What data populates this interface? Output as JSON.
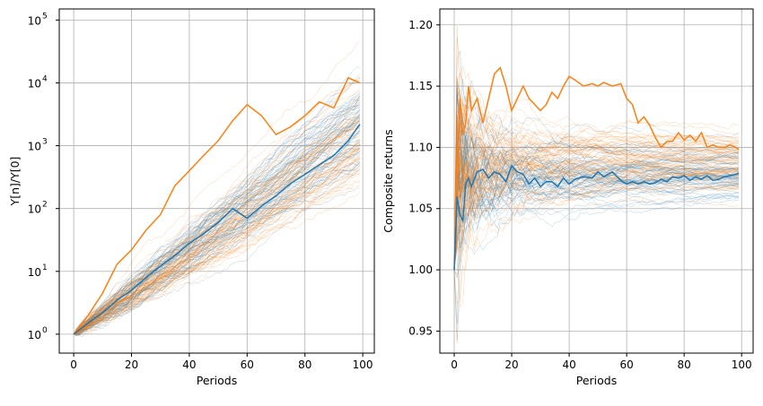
{
  "colors": {
    "blue": "#1f77b4",
    "orange": "#ff7f0e",
    "grid": "#b0b0b0"
  },
  "chart_data": [
    {
      "type": "line",
      "xlabel": "Periods",
      "ylabel": "Y[n]/Y[0]",
      "yscale": "log",
      "xlim": [
        -5,
        104
      ],
      "ylim": [
        0.5,
        150000
      ],
      "grid": true,
      "xticks": [
        "0",
        "20",
        "40",
        "60",
        "80",
        "100"
      ],
      "yticks": [
        {
          "base": "10",
          "exp": "0"
        },
        {
          "base": "10",
          "exp": "1"
        },
        {
          "base": "10",
          "exp": "2"
        },
        {
          "base": "10",
          "exp": "3"
        },
        {
          "base": "10",
          "exp": "4"
        },
        {
          "base": "10",
          "exp": "5"
        }
      ],
      "highlight_series": [
        {
          "color": "orange",
          "x": [
            0,
            5,
            10,
            15,
            20,
            25,
            30,
            35,
            40,
            45,
            50,
            55,
            60,
            65,
            70,
            75,
            80,
            85,
            90,
            95,
            99
          ],
          "values": [
            1,
            2,
            4.5,
            13,
            22,
            45,
            80,
            230,
            400,
            700,
            1200,
            2500,
            4500,
            3000,
            1500,
            2000,
            3000,
            5000,
            4000,
            12000,
            10000
          ]
        },
        {
          "color": "blue",
          "x": [
            0,
            5,
            10,
            15,
            20,
            25,
            30,
            35,
            40,
            45,
            50,
            55,
            60,
            65,
            70,
            75,
            80,
            85,
            90,
            95,
            99
          ],
          "values": [
            1,
            1.5,
            2.2,
            3.5,
            5,
            8,
            12,
            18,
            28,
            40,
            60,
            100,
            70,
            110,
            160,
            250,
            350,
            500,
            700,
            1200,
            2200
          ]
        }
      ]
    },
    {
      "type": "line",
      "xlabel": "Periods",
      "ylabel": "Composite returns",
      "yscale": "linear",
      "xlim": [
        -5,
        104
      ],
      "ylim": [
        0.932,
        1.213
      ],
      "grid": true,
      "xticks": [
        "0",
        "20",
        "40",
        "60",
        "80",
        "100"
      ],
      "yticks": [
        "0.95",
        "1.00",
        "1.05",
        "1.10",
        "1.15",
        "1.20"
      ],
      "highlight_series": [
        {
          "color": "orange",
          "x": [
            0,
            1,
            2,
            3,
            4,
            5,
            6,
            8,
            10,
            12,
            14,
            16,
            18,
            20,
            22,
            24,
            26,
            28,
            30,
            32,
            34,
            36,
            38,
            40,
            42,
            45,
            48,
            50,
            52,
            55,
            58,
            60,
            62,
            64,
            66,
            68,
            70,
            72,
            74,
            76,
            78,
            80,
            82,
            84,
            86,
            88,
            90,
            92,
            94,
            96,
            98,
            99
          ],
          "values": [
            1.0,
            1.08,
            1.14,
            1.11,
            1.12,
            1.15,
            1.13,
            1.14,
            1.12,
            1.14,
            1.16,
            1.165,
            1.15,
            1.13,
            1.14,
            1.15,
            1.14,
            1.135,
            1.13,
            1.135,
            1.145,
            1.14,
            1.15,
            1.158,
            1.155,
            1.15,
            1.152,
            1.15,
            1.153,
            1.15,
            1.152,
            1.14,
            1.135,
            1.12,
            1.125,
            1.118,
            1.108,
            1.1,
            1.105,
            1.105,
            1.112,
            1.106,
            1.11,
            1.105,
            1.112,
            1.1,
            1.102,
            1.1,
            1.1,
            1.102,
            1.1,
            1.098
          ]
        },
        {
          "color": "blue",
          "x": [
            0,
            1,
            2,
            3,
            4,
            5,
            6,
            8,
            10,
            12,
            14,
            16,
            18,
            20,
            22,
            24,
            26,
            28,
            30,
            32,
            34,
            36,
            38,
            40,
            42,
            45,
            48,
            50,
            52,
            55,
            58,
            60,
            62,
            64,
            66,
            68,
            70,
            72,
            74,
            76,
            78,
            80,
            82,
            84,
            86,
            88,
            90,
            92,
            94,
            96,
            98,
            99
          ],
          "values": [
            1.0,
            1.06,
            1.045,
            1.04,
            1.07,
            1.075,
            1.068,
            1.08,
            1.082,
            1.075,
            1.08,
            1.078,
            1.072,
            1.085,
            1.08,
            1.078,
            1.07,
            1.075,
            1.068,
            1.072,
            1.072,
            1.068,
            1.075,
            1.07,
            1.074,
            1.076,
            1.075,
            1.08,
            1.076,
            1.08,
            1.073,
            1.07,
            1.072,
            1.07,
            1.072,
            1.07,
            1.071,
            1.074,
            1.072,
            1.076,
            1.075,
            1.077,
            1.073,
            1.076,
            1.074,
            1.077,
            1.073,
            1.074,
            1.076,
            1.077,
            1.078,
            1.079
          ]
        }
      ]
    }
  ]
}
